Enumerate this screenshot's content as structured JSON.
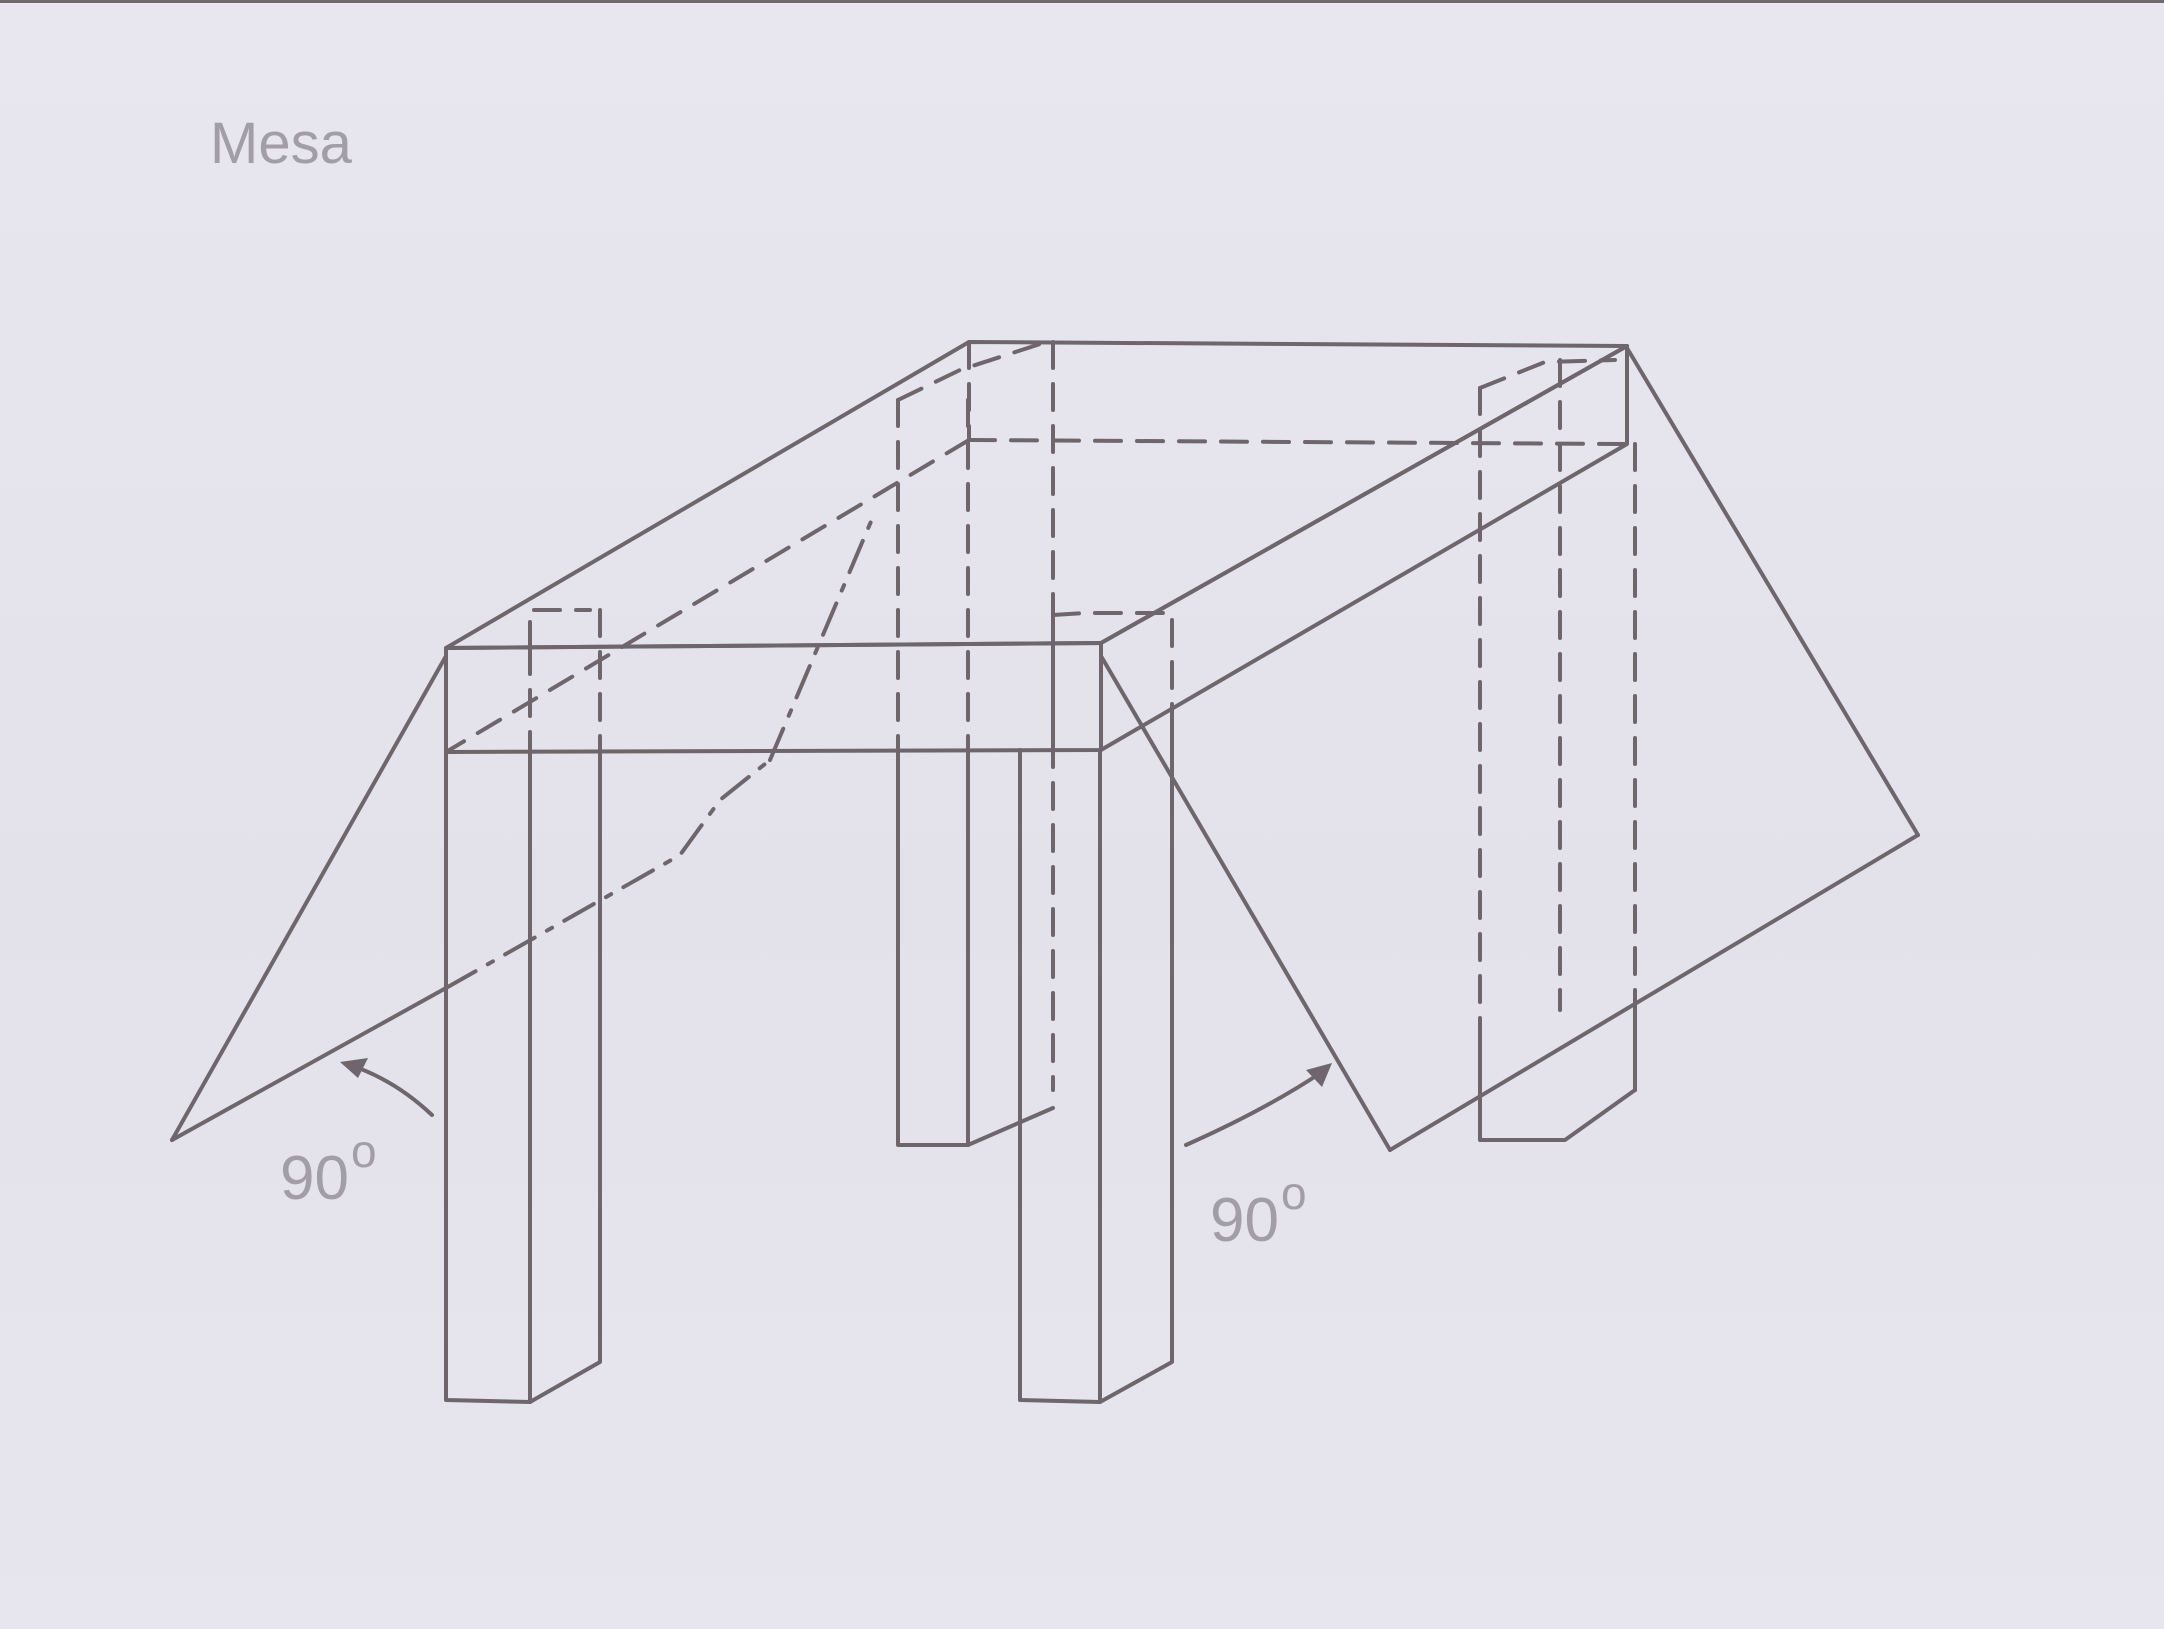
{
  "title": "Mesa",
  "annotations": {
    "left_angle": {
      "value": "90",
      "unit": "o"
    },
    "right_angle": {
      "value": "90",
      "unit": "o"
    }
  },
  "colors": {
    "paper": "#e6e4ec",
    "ink": "#6e666c",
    "label_gray": "#a29ea6"
  }
}
